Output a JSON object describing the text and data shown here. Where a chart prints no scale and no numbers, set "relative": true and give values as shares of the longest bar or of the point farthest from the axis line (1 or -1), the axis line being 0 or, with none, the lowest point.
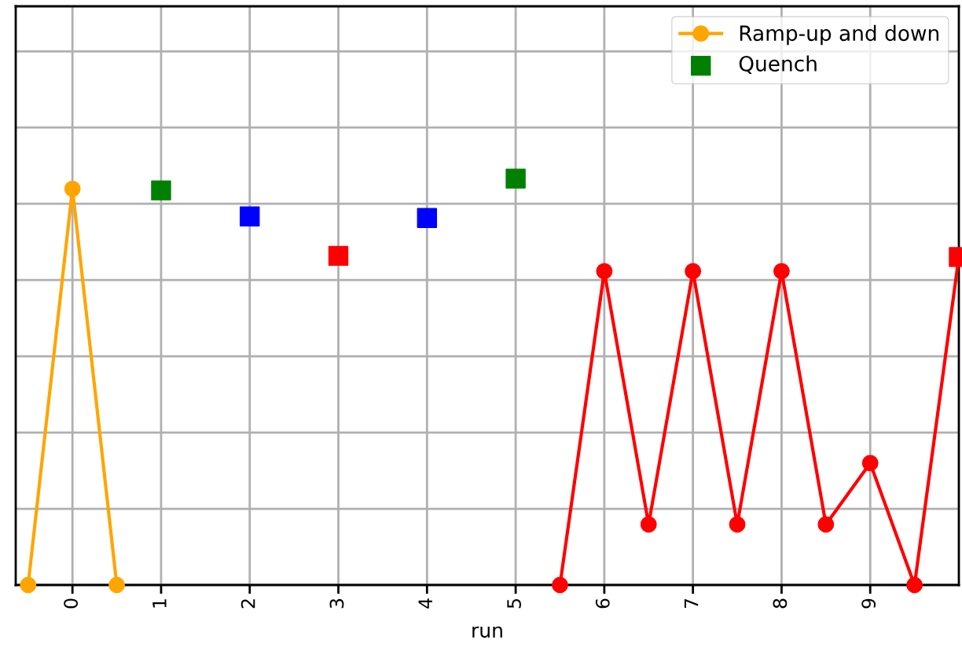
{
  "chart_data": {
    "type": "line",
    "xlabel": "run",
    "relative": true,
    "xlim": [
      -0.64,
      10
    ],
    "xticks": [
      0,
      1,
      2,
      3,
      4,
      5,
      6,
      7,
      8,
      9
    ],
    "tick_labels": "x",
    "grid": true,
    "legend": "top right",
    "series": [
      {
        "name": "Ramp-up and down",
        "marker": "circle",
        "color": "#ffa500",
        "x": [
          -0.5,
          0,
          0.5
        ],
        "values": [
          0,
          0.975,
          0
        ]
      },
      {
        "name": "Quench",
        "type": "scatter",
        "marker": "square",
        "color": "#008000",
        "x": [
          1,
          5
        ],
        "values": [
          0.971,
          1.0
        ]
      },
      {
        "type": "scatter",
        "marker": "square",
        "color": "#0000ff",
        "x": [
          2,
          4
        ],
        "values": [
          0.907,
          0.903
        ]
      },
      {
        "type": "scatter",
        "marker": "square",
        "color": "#ff0000",
        "x": [
          3,
          10
        ],
        "values": [
          0.81,
          0.807
        ]
      },
      {
        "marker": "circle",
        "color": "#ff0000",
        "x": [
          5.5,
          6,
          6.5,
          7,
          7.5,
          8,
          8.5,
          9,
          9.5,
          10
        ],
        "values": [
          0,
          0.772,
          0.149,
          0.772,
          0.149,
          0.772,
          0.149,
          0.3,
          0,
          0.807
        ]
      }
    ]
  }
}
